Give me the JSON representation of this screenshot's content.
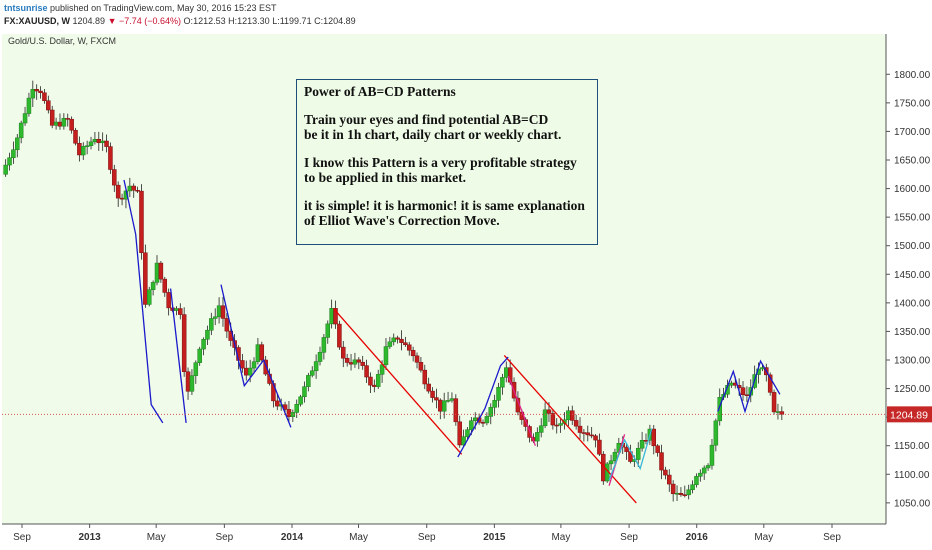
{
  "header": {
    "username": "tntsunrise",
    "published_text": "published on TradingView.com, May 30, 2016 15:23 EST",
    "symbol": "FX:XAUUSD, W",
    "last": "1204.89",
    "change": "▼ −7.74 (−0.64%)",
    "open_label": "O:",
    "open": "1212.53",
    "high_label": "H:",
    "high": "1213.30",
    "low_label": "L:",
    "low": "1199.71",
    "close_label": "C:",
    "close": "1204.89"
  },
  "colors": {
    "background": "#f0fbe9",
    "up_candle": "#2eb82e",
    "down_candle": "#c41e1e",
    "wick": "#222222",
    "price_line": "#d9534f",
    "price_label_bg": "#c62828",
    "pattern_red": "#e60000",
    "pattern_blue": "#1a1acb",
    "pattern_magenta": "#e0218a",
    "pattern_cyan": "#3ab6d8"
  },
  "chart_data": {
    "type": "candlestick",
    "title": "Gold/U.S. Dollar, W, FXCM",
    "ylim": [
      1020,
      1825
    ],
    "y_ticks": [
      "1050.00",
      "1100.00",
      "1150.00",
      "1200.00",
      "1250.00",
      "1300.00",
      "1350.00",
      "1400.00",
      "1450.00",
      "1500.00",
      "1550.00",
      "1600.00",
      "1650.00",
      "1700.00",
      "1750.00",
      "1800.00"
    ],
    "x_ticks": [
      {
        "label": "Sep",
        "date": "2012-09-01",
        "bold": false
      },
      {
        "label": "2013",
        "date": "2013-01-01",
        "bold": true
      },
      {
        "label": "May",
        "date": "2013-05-01",
        "bold": false
      },
      {
        "label": "Sep",
        "date": "2013-09-01",
        "bold": false
      },
      {
        "label": "2014",
        "date": "2014-01-01",
        "bold": true
      },
      {
        "label": "May",
        "date": "2014-05-01",
        "bold": false
      },
      {
        "label": "Sep",
        "date": "2014-09-01",
        "bold": false
      },
      {
        "label": "2015",
        "date": "2015-01-01",
        "bold": true
      },
      {
        "label": "May",
        "date": "2015-05-01",
        "bold": false
      },
      {
        "label": "Sep",
        "date": "2015-09-01",
        "bold": false
      },
      {
        "label": "2016",
        "date": "2016-01-01",
        "bold": true
      },
      {
        "label": "May",
        "date": "2016-05-01",
        "bold": false
      },
      {
        "label": "Sep",
        "date": "2016-09-01",
        "bold": false
      }
    ],
    "last_price": 1204.89,
    "last_price_label": "1204.89",
    "price_path": [
      [
        "2012-07-30",
        1625
      ],
      [
        "2012-08-27",
        1690
      ],
      [
        "2012-09-24",
        1780
      ],
      [
        "2012-10-08",
        1772
      ],
      [
        "2012-10-29",
        1710
      ],
      [
        "2012-11-26",
        1720
      ],
      [
        "2012-12-17",
        1660
      ],
      [
        "2013-01-14",
        1690
      ],
      [
        "2013-02-04",
        1670
      ],
      [
        "2013-02-25",
        1580
      ],
      [
        "2013-03-18",
        1605
      ],
      [
        "2013-04-01",
        1590
      ],
      [
        "2013-04-15",
        1395
      ],
      [
        "2013-05-06",
        1465
      ],
      [
        "2013-05-27",
        1395
      ],
      [
        "2013-06-17",
        1385
      ],
      [
        "2013-06-28",
        1230
      ],
      [
        "2013-07-22",
        1325
      ],
      [
        "2013-08-26",
        1395
      ],
      [
        "2013-09-16",
        1330
      ],
      [
        "2013-10-14",
        1270
      ],
      [
        "2013-11-04",
        1320
      ],
      [
        "2013-12-02",
        1230
      ],
      [
        "2013-12-30",
        1202
      ],
      [
        "2014-01-27",
        1250
      ],
      [
        "2014-02-24",
        1320
      ],
      [
        "2014-03-17",
        1385
      ],
      [
        "2014-04-07",
        1300
      ],
      [
        "2014-05-05",
        1295
      ],
      [
        "2014-06-02",
        1250
      ],
      [
        "2014-06-23",
        1320
      ],
      [
        "2014-07-14",
        1340
      ],
      [
        "2014-08-11",
        1310
      ],
      [
        "2014-09-01",
        1265
      ],
      [
        "2014-09-29",
        1215
      ],
      [
        "2014-10-20",
        1235
      ],
      [
        "2014-11-03",
        1145
      ],
      [
        "2014-11-24",
        1200
      ],
      [
        "2014-12-15",
        1195
      ],
      [
        "2015-01-05",
        1230
      ],
      [
        "2015-01-26",
        1290
      ],
      [
        "2015-02-16",
        1205
      ],
      [
        "2015-03-16",
        1155
      ],
      [
        "2015-04-06",
        1210
      ],
      [
        "2015-04-27",
        1180
      ],
      [
        "2015-05-18",
        1210
      ],
      [
        "2015-06-08",
        1180
      ],
      [
        "2015-07-06",
        1165
      ],
      [
        "2015-07-20",
        1095
      ],
      [
        "2015-08-17",
        1160
      ],
      [
        "2015-09-07",
        1120
      ],
      [
        "2015-10-12",
        1175
      ],
      [
        "2015-11-02",
        1110
      ],
      [
        "2015-11-23",
        1065
      ],
      [
        "2015-12-14",
        1060
      ],
      [
        "2016-01-04",
        1100
      ],
      [
        "2016-01-25",
        1120
      ],
      [
        "2016-02-15",
        1230
      ],
      [
        "2016-03-07",
        1260
      ],
      [
        "2016-04-04",
        1235
      ],
      [
        "2016-04-25",
        1290
      ],
      [
        "2016-05-09",
        1270
      ],
      [
        "2016-05-23",
        1205
      ],
      [
        "2016-05-30",
        1204.89
      ]
    ],
    "pattern_lines": [
      {
        "color": "red",
        "points": [
          [
            "2014-03-17",
            1390
          ],
          [
            "2014-11-03",
            1135
          ]
        ]
      },
      {
        "color": "red",
        "points": [
          [
            "2015-01-19",
            1308
          ],
          [
            "2015-09-14",
            1050
          ]
        ]
      },
      {
        "color": "blue",
        "points": [
          [
            "2013-03-04",
            1615
          ],
          [
            "2013-03-25",
            1520
          ],
          [
            "2013-04-22",
            1222
          ],
          [
            "2013-05-13",
            1190
          ]
        ]
      },
      {
        "color": "blue",
        "points": [
          [
            "2013-05-27",
            1425
          ],
          [
            "2013-06-24",
            1190
          ]
        ]
      },
      {
        "color": "blue",
        "points": [
          [
            "2013-08-26",
            1432
          ],
          [
            "2013-10-07",
            1255
          ],
          [
            "2013-11-11",
            1300
          ],
          [
            "2013-12-30",
            1182
          ]
        ]
      },
      {
        "color": "blue",
        "points": [
          [
            "2014-10-27",
            1130
          ],
          [
            "2014-12-15",
            1215
          ],
          [
            "2015-01-12",
            1290
          ],
          [
            "2015-01-26",
            1305
          ]
        ]
      },
      {
        "color": "blue",
        "points": [
          [
            "2016-02-08",
            1210
          ],
          [
            "2016-03-07",
            1280
          ],
          [
            "2016-03-28",
            1210
          ],
          [
            "2016-04-25",
            1298
          ],
          [
            "2016-05-30",
            1240
          ]
        ]
      },
      {
        "color": "magenta",
        "points": [
          [
            "2015-01-26",
            1272
          ],
          [
            "2015-03-16",
            1150
          ]
        ]
      },
      {
        "color": "magenta",
        "points": [
          [
            "2015-07-27",
            1080
          ],
          [
            "2015-08-24",
            1170
          ]
        ]
      },
      {
        "color": "cyan",
        "points": [
          [
            "2015-07-27",
            1090
          ],
          [
            "2015-08-24",
            1160
          ],
          [
            "2015-09-21",
            1110
          ],
          [
            "2015-10-12",
            1180
          ]
        ]
      }
    ]
  },
  "annotation": {
    "title": "Power of AB=CD Patterns",
    "p1_line1": "Train your eyes and find potential AB=CD",
    "p1_line2": "be it in 1h chart, daily chart or weekly chart.",
    "p2_line1": "I know this Pattern is a very profitable strategy",
    "p2_line2": "to be applied in this market.",
    "p3_line1": "it is simple! it is harmonic! it is same explanation",
    "p3_line2": "of Elliot Wave's Correction Move."
  }
}
